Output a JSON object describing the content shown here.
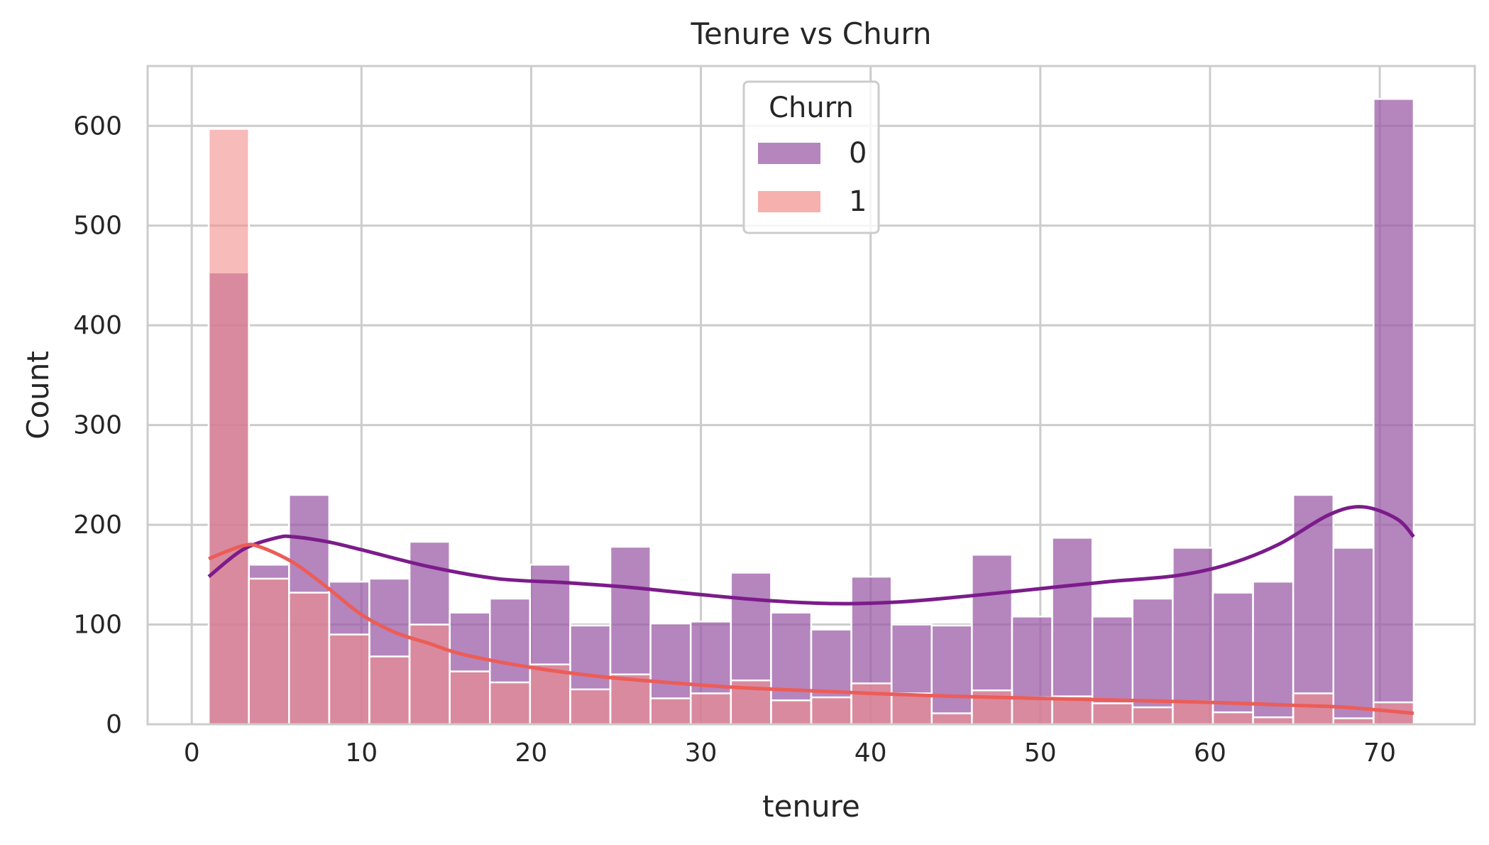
{
  "chart_data": {
    "type": "histogram",
    "title": "Tenure vs Churn",
    "xlabel": "tenure",
    "ylabel": "Count",
    "xlim": [
      -2.6,
      75.6
    ],
    "ylim": [
      0,
      660
    ],
    "xticks": [
      0,
      10,
      20,
      30,
      40,
      50,
      60,
      70
    ],
    "yticks": [
      0,
      100,
      200,
      300,
      400,
      500,
      600
    ],
    "grid": true,
    "legend": {
      "title": "Churn",
      "placement": "upper center"
    },
    "bin_start": 1,
    "bin_width": 2.3667,
    "series": [
      {
        "name": "0",
        "color": "#7b1c8a",
        "bar_color": "#9c5ca8",
        "counts": [
          453,
          160,
          230,
          143,
          146,
          183,
          112,
          126,
          160,
          99,
          178,
          101,
          103,
          152,
          112,
          95,
          148,
          100,
          99,
          170,
          108,
          187,
          108,
          126,
          177,
          132,
          143,
          230,
          177,
          627
        ],
        "kde": [
          [
            1,
            148
          ],
          [
            3,
            175
          ],
          [
            5,
            187
          ],
          [
            6,
            188
          ],
          [
            8,
            183
          ],
          [
            10,
            175
          ],
          [
            14,
            158
          ],
          [
            18,
            146
          ],
          [
            22,
            142
          ],
          [
            26,
            137
          ],
          [
            30,
            130
          ],
          [
            34,
            124
          ],
          [
            38,
            121
          ],
          [
            42,
            123
          ],
          [
            46,
            129
          ],
          [
            50,
            136
          ],
          [
            54,
            143
          ],
          [
            58,
            149
          ],
          [
            61,
            160
          ],
          [
            64,
            180
          ],
          [
            67,
            210
          ],
          [
            69,
            218
          ],
          [
            71,
            206
          ],
          [
            72,
            188
          ]
        ]
      },
      {
        "name": "1",
        "color": "#ec5d57",
        "bar_color": "#f28e8a",
        "counts": [
          597,
          146,
          132,
          90,
          68,
          100,
          53,
          42,
          60,
          35,
          50,
          26,
          31,
          44,
          24,
          27,
          41,
          31,
          11,
          34,
          27,
          28,
          21,
          17,
          23,
          12,
          7,
          31,
          6,
          22
        ],
        "kde": [
          [
            1,
            166
          ],
          [
            3,
            179
          ],
          [
            4,
            178
          ],
          [
            6,
            162
          ],
          [
            8,
            137
          ],
          [
            10,
            110
          ],
          [
            12,
            92
          ],
          [
            14,
            81
          ],
          [
            16,
            70
          ],
          [
            20,
            57
          ],
          [
            24,
            48
          ],
          [
            28,
            42
          ],
          [
            32,
            37
          ],
          [
            36,
            34
          ],
          [
            40,
            31
          ],
          [
            45,
            28
          ],
          [
            50,
            26
          ],
          [
            55,
            24
          ],
          [
            60,
            22
          ],
          [
            65,
            19
          ],
          [
            68,
            17
          ],
          [
            72,
            11
          ]
        ]
      }
    ]
  }
}
